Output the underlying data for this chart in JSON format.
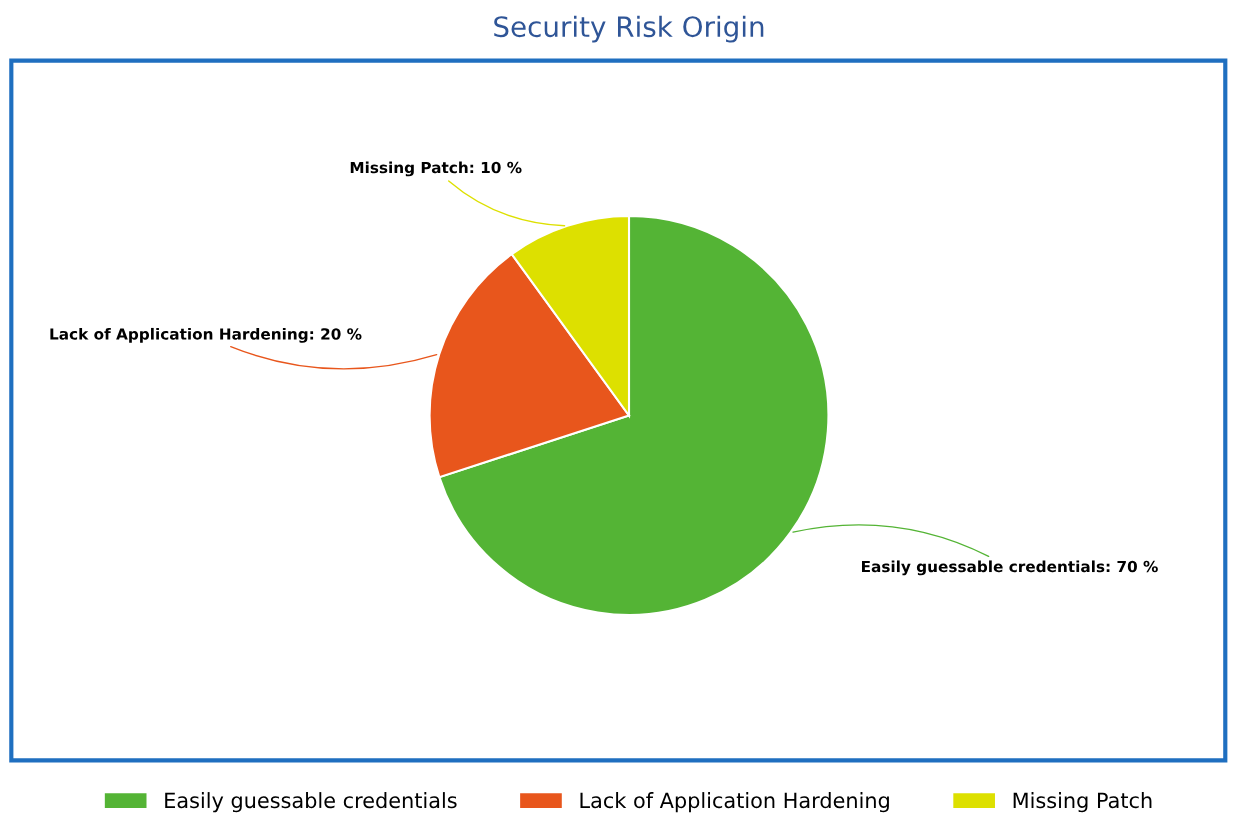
{
  "chart_data": {
    "type": "pie",
    "title": "Security Risk Origin",
    "categories": [
      "Easily guessable credentials",
      "Lack of Application Hardening",
      "Missing Patch"
    ],
    "values": [
      70,
      20,
      10
    ],
    "colors": [
      "#54b435",
      "#e8561c",
      "#dde000"
    ],
    "value_labels": [
      "Easily guessable credentials: 70 %",
      "Lack of Application Hardening: 20 %",
      "Missing Patch: 10 %"
    ],
    "legend": "bottom"
  }
}
